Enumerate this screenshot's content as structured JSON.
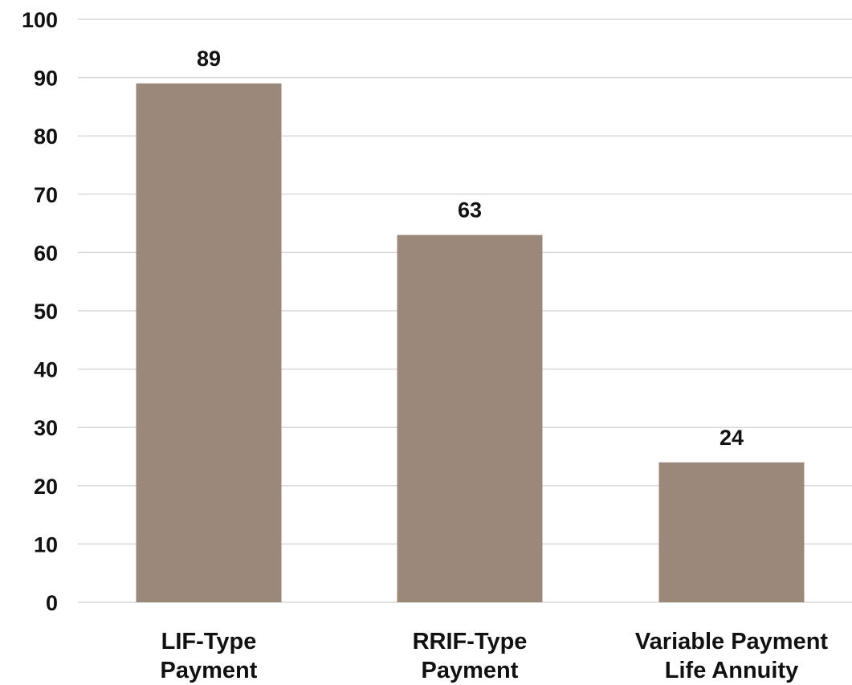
{
  "chart_data": {
    "type": "bar",
    "categories": [
      [
        "LIF-Type",
        "Payment"
      ],
      [
        "RRIF-Type",
        "Payment"
      ],
      [
        "Variable Payment",
        "Life Annuity"
      ]
    ],
    "values": [
      89,
      63,
      24
    ],
    "data_labels": [
      "89",
      "63",
      "24"
    ],
    "title": "",
    "xlabel": "",
    "ylabel": "",
    "ylim": [
      0,
      100
    ],
    "y_ticks": [
      "0",
      "10",
      "20",
      "30",
      "40",
      "50",
      "60",
      "70",
      "80",
      "90",
      "100"
    ],
    "grid": true,
    "legend": "none",
    "bar_color": "#9c887b"
  }
}
